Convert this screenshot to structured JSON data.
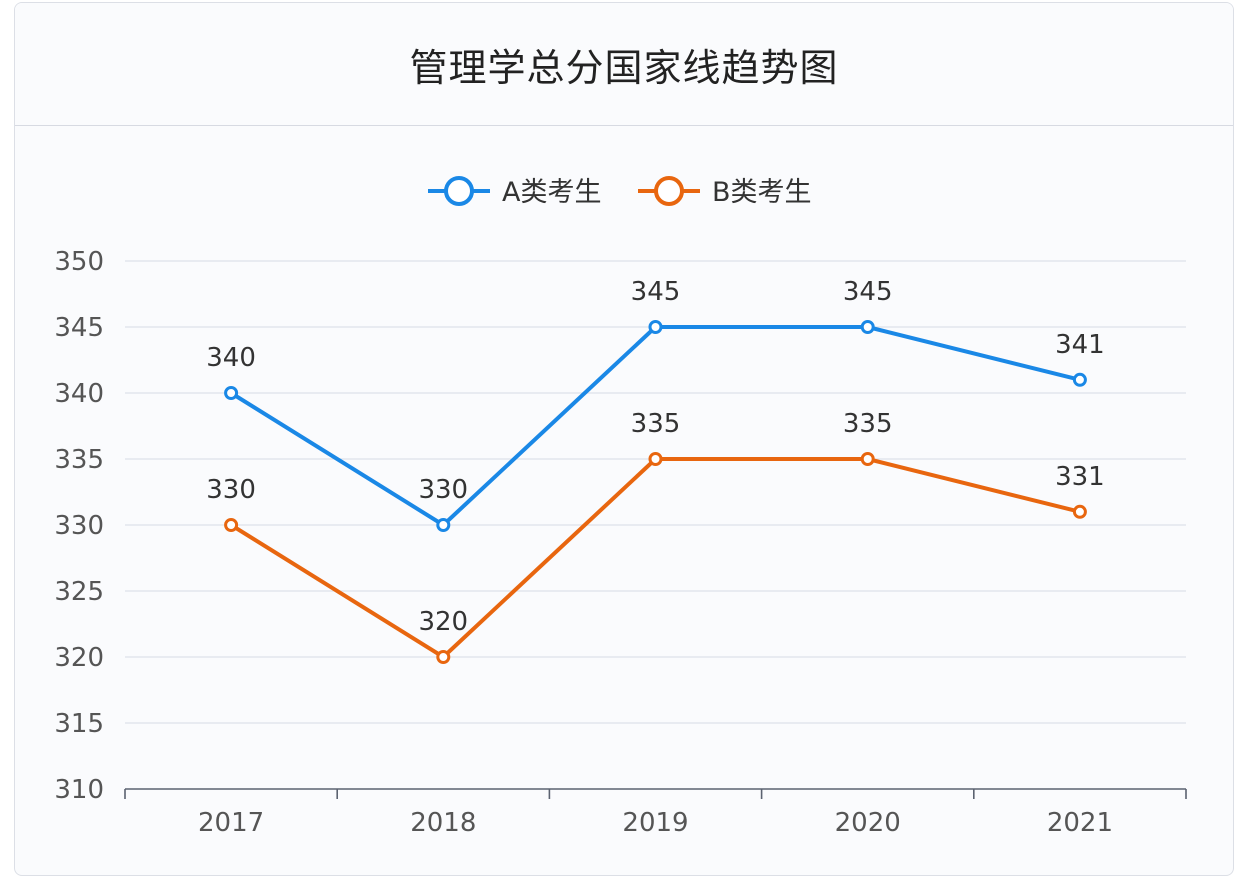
{
  "card": {
    "title": "管理学总分国家线趋势图"
  },
  "chart_data": {
    "type": "line",
    "title": "管理学总分国家线趋势图",
    "categories": [
      "2017",
      "2018",
      "2019",
      "2020",
      "2021"
    ],
    "series": [
      {
        "name": "A类考生",
        "values": [
          340,
          330,
          345,
          345,
          341
        ],
        "color": "#1a88e6"
      },
      {
        "name": "B类考生",
        "values": [
          330,
          320,
          335,
          335,
          331
        ],
        "color": "#e8660f"
      }
    ],
    "ylim": [
      310,
      350
    ],
    "yticks": [
      310,
      315,
      320,
      325,
      330,
      335,
      340,
      345,
      350
    ],
    "xlabel": "",
    "ylabel": "",
    "grid": true,
    "legend": "top-center"
  }
}
